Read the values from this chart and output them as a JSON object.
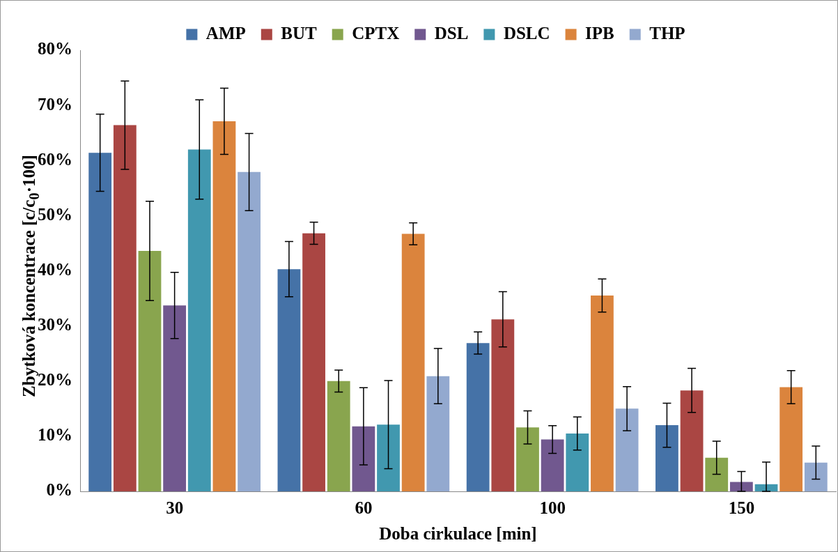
{
  "chart_data": {
    "type": "bar",
    "xlabel": "Doba cirkulace [min]",
    "ylabel": "Zbytková koncentrace [c/c$_{0}$·100]",
    "categories": [
      "30",
      "60",
      "100",
      "150"
    ],
    "series": [
      {
        "name": "AMP",
        "color": "#4572a7",
        "values": [
          61.4,
          40.3,
          26.9,
          12.0
        ],
        "errors": [
          7,
          5,
          2,
          4
        ]
      },
      {
        "name": "BUT",
        "color": "#aa4643",
        "values": [
          66.4,
          46.8,
          31.2,
          18.3
        ],
        "errors": [
          8,
          2,
          5,
          4
        ]
      },
      {
        "name": "CPTX",
        "color": "#89a54e",
        "values": [
          43.6,
          20.0,
          11.6,
          6.1
        ],
        "errors": [
          9,
          2,
          3,
          3
        ]
      },
      {
        "name": "DSL",
        "color": "#71588f",
        "values": [
          33.7,
          11.8,
          9.4,
          1.7
        ],
        "errors": [
          6,
          7,
          2.5,
          [
            0,
            3.6
          ]
        ]
      },
      {
        "name": "DSLC",
        "color": "#4198af",
        "values": [
          62.0,
          12.1,
          10.5,
          1.3
        ],
        "errors": [
          9,
          8,
          3,
          [
            0,
            5.3
          ]
        ]
      },
      {
        "name": "IPB",
        "color": "#db843d",
        "values": [
          67.1,
          46.7,
          35.5,
          18.9
        ],
        "errors": [
          6,
          2,
          3,
          3
        ]
      },
      {
        "name": "THP",
        "color": "#93a9cf",
        "values": [
          57.9,
          20.9,
          15.0,
          5.2
        ],
        "errors": [
          7,
          5,
          4,
          3
        ]
      }
    ],
    "ylim": [
      0,
      80
    ],
    "yticks": [
      {
        "value": 0,
        "label": "0%"
      },
      {
        "value": 10,
        "label": "10%"
      },
      {
        "value": 20,
        "label": "20%"
      },
      {
        "value": 30,
        "label": "30%"
      },
      {
        "value": 40,
        "label": "40%"
      },
      {
        "value": 50,
        "label": "50%"
      },
      {
        "value": 60,
        "label": "60%"
      },
      {
        "value": 70,
        "label": "70%"
      },
      {
        "value": 80,
        "label": "80%"
      }
    ],
    "grid": false,
    "legend": "top"
  }
}
